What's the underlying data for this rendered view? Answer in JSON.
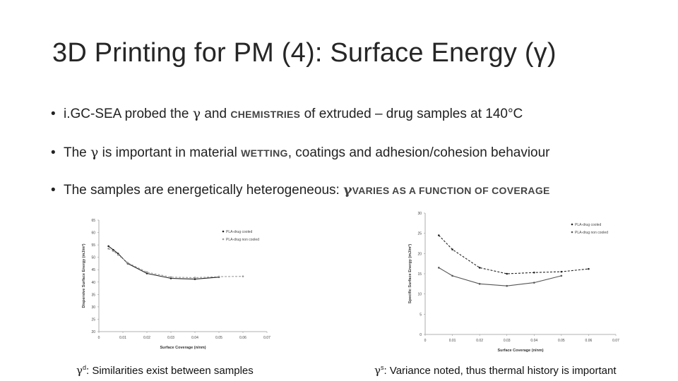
{
  "slide": {
    "title": "3D Printing for PM (4): Surface Energy (γ)",
    "bullets": [
      {
        "pre": "i.GC-SEA probed the ",
        "gamma": "γ",
        "mid": " and ",
        "caps": "CHEMISTRIES",
        "post": " of extruded – drug samples at 140°C"
      },
      {
        "pre": "The ",
        "gamma": "γ",
        "mid": " is important in material ",
        "caps": "WETTING",
        "post": ", coatings and adhesion/cohesion behaviour"
      },
      {
        "pre": "The samples are energetically heterogeneous: ",
        "gamma": "γ",
        "caps": "VARIES AS A FUNCTION OF COVERAGE"
      }
    ],
    "captions": {
      "left": {
        "gamma": "γ",
        "sup": "d",
        "text": ": Similarities exist between samples"
      },
      "right": {
        "gamma": "γ",
        "sup": "s",
        "text": ": Variance noted, thus thermal history is important"
      }
    },
    "colors": {
      "series_dark": "#222222",
      "series_grey": "#9a9a9a"
    }
  },
  "chart_data": [
    {
      "type": "line",
      "title": "",
      "xlabel": "Surface Coverage (n/nm)",
      "ylabel": "Dispersive Surface Energy (mJ/m²)",
      "xlim": [
        0,
        0.07
      ],
      "ylim": [
        20,
        65
      ],
      "xticks": [
        "0",
        "0.01",
        "0.02",
        "0.03",
        "0.04",
        "0.05",
        "0.06",
        "0.07"
      ],
      "yticks": [
        "20",
        "25",
        "30",
        "35",
        "40",
        "45",
        "50",
        "55",
        "60",
        "65"
      ],
      "legend": "top-right",
      "series": [
        {
          "name": "PLA-drug cooled",
          "style": "solid",
          "color": "#222222",
          "x": [
            0.004,
            0.006,
            0.008,
            0.012,
            0.02,
            0.03,
            0.04,
            0.05
          ],
          "y": [
            54.5,
            53.0,
            51.5,
            47.5,
            43.5,
            41.5,
            41.2,
            42.0
          ]
        },
        {
          "name": "PLA-drug non cooled",
          "style": "dashed",
          "color": "#9a9a9a",
          "x": [
            0.004,
            0.006,
            0.008,
            0.012,
            0.02,
            0.03,
            0.04,
            0.05,
            0.06
          ],
          "y": [
            53.5,
            52.5,
            51.0,
            47.8,
            44.0,
            42.0,
            41.8,
            42.2,
            42.3
          ]
        }
      ]
    },
    {
      "type": "line",
      "title": "",
      "xlabel": "Surface Coverage (n/nm)",
      "ylabel": "Specific Surface Energy (mJ/m²)",
      "xlim": [
        0,
        0.07
      ],
      "ylim": [
        0,
        30
      ],
      "xticks": [
        "0",
        "0.01",
        "0.02",
        "0.03",
        "0.04",
        "0.05",
        "0.06",
        "0.07"
      ],
      "yticks": [
        "0",
        "5",
        "10",
        "15",
        "20",
        "25",
        "30"
      ],
      "legend": "top-right",
      "series": [
        {
          "name": "PLA-drug cooled",
          "style": "dashed",
          "color": "#222222",
          "x": [
            0.005,
            0.01,
            0.02,
            0.03,
            0.04,
            0.05,
            0.06
          ],
          "y": [
            24.5,
            21.0,
            16.5,
            15.0,
            15.3,
            15.5,
            16.2
          ]
        },
        {
          "name": "PLA-drug non cooled",
          "style": "solid",
          "color": "#555555",
          "x": [
            0.005,
            0.01,
            0.02,
            0.03,
            0.04,
            0.05
          ],
          "y": [
            16.5,
            14.5,
            12.5,
            12.0,
            12.8,
            14.5
          ]
        }
      ]
    }
  ]
}
